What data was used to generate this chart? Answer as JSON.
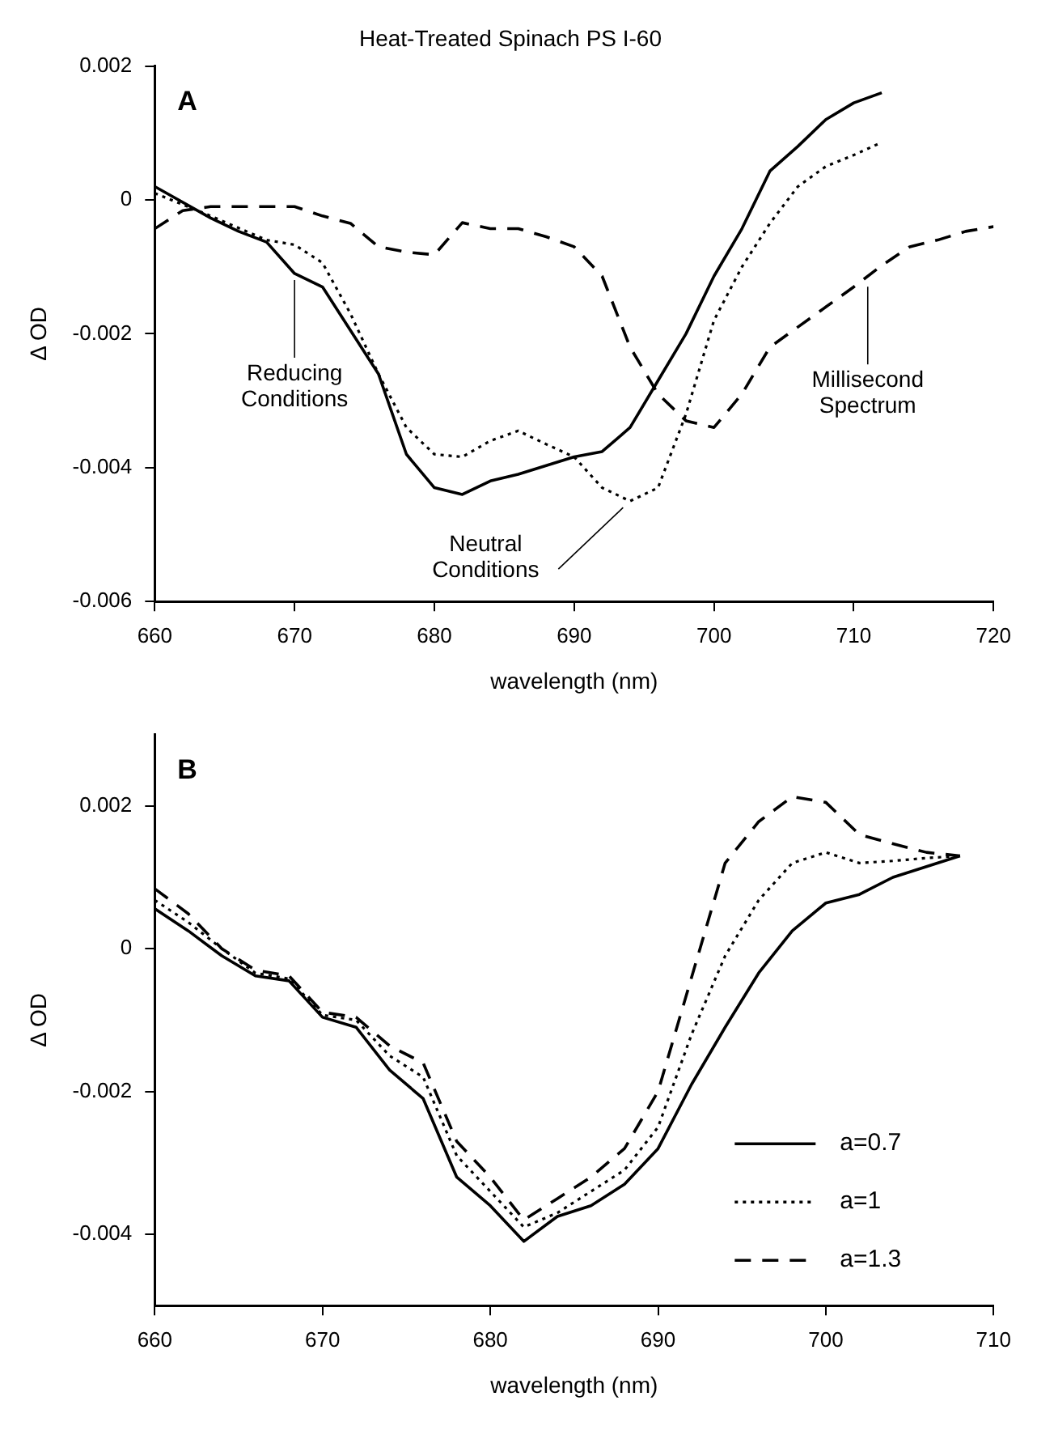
{
  "chart_data": [
    {
      "type": "line",
      "title": "Heat-Treated Spinach PS I-60",
      "xlabel": "wavelength (nm)",
      "ylabel": "Δ OD",
      "x": [
        660,
        662,
        664,
        666,
        668,
        670,
        672,
        674,
        676,
        678,
        680,
        682,
        684,
        686,
        688,
        690,
        692,
        694,
        696,
        698,
        700,
        702,
        704,
        706,
        708,
        710,
        712,
        714,
        716,
        718,
        720
      ],
      "series": [
        {
          "color": "#000000",
          "line_style": "solid",
          "x": [
            660,
            664,
            666,
            668,
            670,
            672,
            676,
            678,
            680,
            682,
            684,
            686,
            690,
            692,
            694,
            696,
            698,
            700,
            702,
            704,
            706,
            708,
            710,
            712
          ],
          "values": [
            0.0002,
            -0.00027,
            -0.00047,
            -0.00063,
            -0.0011,
            -0.0013,
            -0.0026,
            -0.0038,
            -0.0043,
            -0.0044,
            -0.0042,
            -0.0041,
            -0.00384,
            -0.00376,
            -0.0034,
            -0.0027,
            -0.002,
            -0.00114,
            -0.00043,
            0.00043,
            0.0008,
            0.0012,
            0.00145,
            0.0016
          ]
        },
        {
          "color": "#000000",
          "line_style": "dotted",
          "x": [
            660,
            664,
            668,
            670,
            672,
            674,
            676,
            678,
            680,
            682,
            684,
            686,
            688,
            690,
            692,
            694,
            696,
            698,
            700,
            702,
            704,
            706,
            708,
            710,
            712
          ],
          "values": [
            0.0001,
            -0.00024,
            -0.0006,
            -0.00067,
            -0.00094,
            -0.0017,
            -0.0026,
            -0.0034,
            -0.0038,
            -0.00384,
            -0.0036,
            -0.00345,
            -0.00365,
            -0.00384,
            -0.0043,
            -0.0045,
            -0.0043,
            -0.0032,
            -0.0018,
            -0.001,
            -0.00035,
            0.0002,
            0.0005,
            0.00067,
            0.00086
          ]
        },
        {
          "color": "#000000",
          "line_style": "dashed",
          "values": [
            -0.00043,
            -0.00016,
            -0.0001,
            -0.0001,
            -0.0001,
            -0.0001,
            -0.00024,
            -0.00035,
            -0.0007,
            -0.00078,
            -0.00082,
            -0.00034,
            -0.00043,
            -0.00043,
            -0.00055,
            -0.0007,
            -0.00114,
            -0.0022,
            -0.0029,
            -0.0033,
            -0.0034,
            -0.0029,
            -0.0022,
            -0.0019,
            -0.0016,
            -0.0013,
            -0.00098,
            -0.0007,
            -0.0006,
            -0.00047,
            -0.0004
          ]
        }
      ],
      "xlim": [
        660,
        720
      ],
      "xticks": [
        660,
        670,
        680,
        690,
        700,
        710,
        720
      ],
      "ylim": [
        -0.006,
        0.002
      ],
      "yticks": [
        -0.006,
        -0.004,
        -0.002,
        0,
        0.002
      ],
      "grid": false,
      "marker": "none",
      "annotations": [
        "A",
        {
          "text": "Reducing Conditions",
          "x": 670,
          "y": -0.0011
        },
        {
          "text": "Neutral Conditions",
          "x": 693.5,
          "y": -0.0045
        },
        {
          "text": "Millisecond Spectrum",
          "x": 711,
          "y": -0.0012
        }
      ]
    },
    {
      "type": "line",
      "xlabel": "wavelength (nm)",
      "ylabel": "Δ OD",
      "x": [
        660,
        662,
        664,
        666,
        668,
        670,
        672,
        674,
        676,
        678,
        680,
        682,
        684,
        686,
        688,
        690,
        692,
        694,
        696,
        698,
        700,
        702,
        704,
        706,
        708
      ],
      "series": [
        {
          "name": "a=0.7",
          "color": "#000000",
          "line_style": "solid",
          "values": [
            0.00056,
            0.00025,
            -0.0001,
            -0.00038,
            -0.00045,
            -0.00096,
            -0.0011,
            -0.0017,
            -0.0021,
            -0.0032,
            -0.0036,
            -0.0041,
            -0.00375,
            -0.0036,
            -0.0033,
            -0.0028,
            -0.0019,
            -0.0011,
            -0.00034,
            0.00025,
            0.00064,
            0.00076,
            0.001,
            0.00115,
            0.0013
          ]
        },
        {
          "name": "a=1",
          "color": "#000000",
          "line_style": "dotted",
          "values": [
            0.00068,
            0.00037,
            0,
            -0.00034,
            -0.00042,
            -0.00093,
            -0.001,
            -0.0015,
            -0.0018,
            -0.0029,
            -0.0034,
            -0.0039,
            -0.0037,
            -0.0034,
            -0.0031,
            -0.0025,
            -0.0012,
            -0.0001,
            0.00068,
            0.0012,
            0.00135,
            0.0012,
            0.00123,
            0.00127,
            0.0013
          ]
        },
        {
          "name": "a=1.3",
          "color": "#000000",
          "line_style": "dashed",
          "values": [
            0.00084,
            0.00049,
            0,
            -0.0003,
            -0.00038,
            -0.00089,
            -0.00096,
            -0.00136,
            -0.0016,
            -0.0027,
            -0.0032,
            -0.0038,
            -0.0035,
            -0.0032,
            -0.0028,
            -0.002,
            -0.0004,
            0.0012,
            0.00178,
            0.00213,
            0.00205,
            0.0016,
            0.00147,
            0.00135,
            0.0013
          ]
        }
      ],
      "xlim": [
        660,
        710
      ],
      "xticks": [
        660,
        670,
        680,
        690,
        700,
        710
      ],
      "ylim": [
        -0.005,
        0.003
      ],
      "yticks": [
        -0.004,
        -0.002,
        0,
        0.002
      ],
      "grid": false,
      "marker": "none",
      "legend": "bottom right",
      "annotations": [
        "B"
      ]
    }
  ]
}
